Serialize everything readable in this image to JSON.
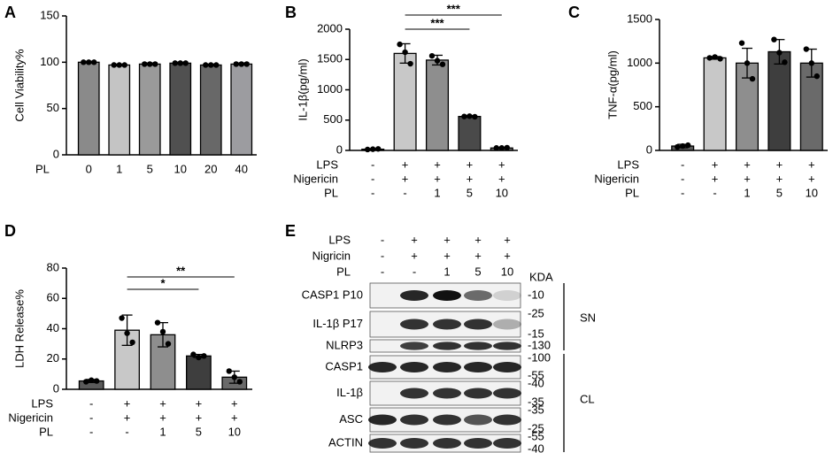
{
  "chart_data": [
    {
      "type": "bar",
      "label": "A",
      "y_label": "Cell Viability%",
      "ylim": [
        0,
        150
      ],
      "yticks": [
        0,
        50,
        100,
        150
      ],
      "values": [
        100,
        97,
        98,
        99,
        97,
        98
      ],
      "errors": [
        1,
        1,
        1,
        1,
        1,
        1
      ],
      "points": [
        [
          100,
          100,
          100
        ],
        [
          97,
          97,
          97
        ],
        [
          98,
          98,
          98
        ],
        [
          99,
          99,
          99
        ],
        [
          97,
          97,
          97
        ],
        [
          98,
          98,
          98
        ]
      ],
      "colors": [
        "#8a8a8a",
        "#c4c4c4",
        "#9a9a9a",
        "#505050",
        "#686868",
        "#9c9ca0"
      ],
      "rows": [
        {
          "label": "PL",
          "cells": [
            "0",
            "1",
            "5",
            "10",
            "20",
            "40"
          ]
        }
      ],
      "significance": []
    },
    {
      "type": "bar",
      "label": "B",
      "y_label": "IL-1β(pg/ml)",
      "ylim": [
        0,
        2000
      ],
      "yticks": [
        0,
        500,
        1000,
        1500,
        2000
      ],
      "values": [
        20,
        1600,
        1490,
        560,
        40
      ],
      "errors": [
        10,
        160,
        80,
        15,
        10
      ],
      "points": [
        [
          15,
          20,
          25
        ],
        [
          1750,
          1620,
          1430
        ],
        [
          1560,
          1480,
          1420
        ],
        [
          560,
          565,
          555
        ],
        [
          40,
          40,
          45
        ]
      ],
      "colors": [
        "#5a5a5a",
        "#c8c8c8",
        "#8e8e8e",
        "#4a4a4a",
        "#6e6e6e"
      ],
      "rows": [
        {
          "label": "LPS",
          "cells": [
            "-",
            "+",
            "+",
            "+",
            "+"
          ]
        },
        {
          "label": "Nigericin",
          "cells": [
            "-",
            "+",
            "+",
            "+",
            "+"
          ]
        },
        {
          "label": "PL",
          "cells": [
            "-",
            "-",
            "1",
            "5",
            "10"
          ]
        }
      ],
      "significance": [
        {
          "from": 1,
          "to": 4,
          "label": "***"
        },
        {
          "from": 1,
          "to": 3,
          "label": "***"
        }
      ]
    },
    {
      "type": "bar",
      "label": "C",
      "y_label": "TNF-α(pg/ml)",
      "ylim": [
        0,
        1500
      ],
      "yticks": [
        0,
        500,
        1000,
        1500
      ],
      "values": [
        50,
        1060,
        1000,
        1130,
        1000
      ],
      "errors": [
        20,
        15,
        170,
        140,
        160
      ],
      "points": [
        [
          40,
          50,
          60
        ],
        [
          1060,
          1070,
          1050
        ],
        [
          1230,
          1000,
          820
        ],
        [
          1270,
          1120,
          1010
        ],
        [
          1160,
          1000,
          850
        ]
      ],
      "colors": [
        "#5a5a5a",
        "#c8c8c8",
        "#8e8e8e",
        "#3e3e3e",
        "#6a6a6a"
      ],
      "rows": [
        {
          "label": "LPS",
          "cells": [
            "-",
            "+",
            "+",
            "+",
            "+"
          ]
        },
        {
          "label": "Nigericin",
          "cells": [
            "-",
            "+",
            "+",
            "+",
            "+"
          ]
        },
        {
          "label": "PL",
          "cells": [
            "-",
            "-",
            "1",
            "5",
            "10"
          ]
        }
      ],
      "significance": []
    },
    {
      "type": "bar",
      "label": "D",
      "y_label": "LDH Release%",
      "ylim": [
        0,
        80
      ],
      "yticks": [
        0,
        20,
        40,
        60,
        80
      ],
      "values": [
        5.5,
        39,
        36,
        22,
        8
      ],
      "errors": [
        1,
        10,
        8,
        1,
        4
      ],
      "points": [
        [
          5,
          6,
          5.5
        ],
        [
          47,
          37,
          31
        ],
        [
          44,
          38,
          30
        ],
        [
          23,
          21,
          22
        ],
        [
          12,
          8,
          5
        ]
      ],
      "colors": [
        "#5a5a5a",
        "#c8c8c8",
        "#8e8e8e",
        "#3e3e3e",
        "#6a6a6a"
      ],
      "rows": [
        {
          "label": "LPS",
          "cells": [
            "-",
            "+",
            "+",
            "+",
            "+"
          ]
        },
        {
          "label": "Nigericin",
          "cells": [
            "-",
            "+",
            "+",
            "+",
            "+"
          ]
        },
        {
          "label": "PL",
          "cells": [
            "-",
            "-",
            "1",
            "5",
            "10"
          ]
        }
      ],
      "significance": [
        {
          "from": 1,
          "to": 4,
          "label": "**"
        },
        {
          "from": 1,
          "to": 3,
          "label": "*"
        }
      ]
    }
  ],
  "blot": {
    "label": "E",
    "rows": [
      {
        "label": "LPS",
        "cells": [
          "-",
          "+",
          "+",
          "+",
          "+"
        ]
      },
      {
        "label": "Nigricin",
        "cells": [
          "-",
          "+",
          "+",
          "+",
          "+"
        ]
      },
      {
        "label": "PL",
        "cells": [
          "-",
          "-",
          "1",
          "5",
          "10"
        ]
      }
    ],
    "unit": "KDA",
    "bands": [
      {
        "name": "CASP1 P10",
        "markers": [
          "-10"
        ]
      },
      {
        "name": "IL-1β P17",
        "markers": [
          "-25",
          "-15"
        ]
      },
      {
        "name": "NLRP3",
        "markers": [
          "-130"
        ]
      },
      {
        "name": "CASP1",
        "markers": [
          "-100",
          "-55"
        ]
      },
      {
        "name": "IL-1β",
        "markers": [
          "-40",
          "-35"
        ]
      },
      {
        "name": "ASC",
        "markers": [
          "-35",
          "-25"
        ]
      },
      {
        "name": "ACTIN",
        "markers": [
          "-55",
          "-40"
        ]
      }
    ],
    "groups": [
      "SN",
      "CL"
    ]
  }
}
